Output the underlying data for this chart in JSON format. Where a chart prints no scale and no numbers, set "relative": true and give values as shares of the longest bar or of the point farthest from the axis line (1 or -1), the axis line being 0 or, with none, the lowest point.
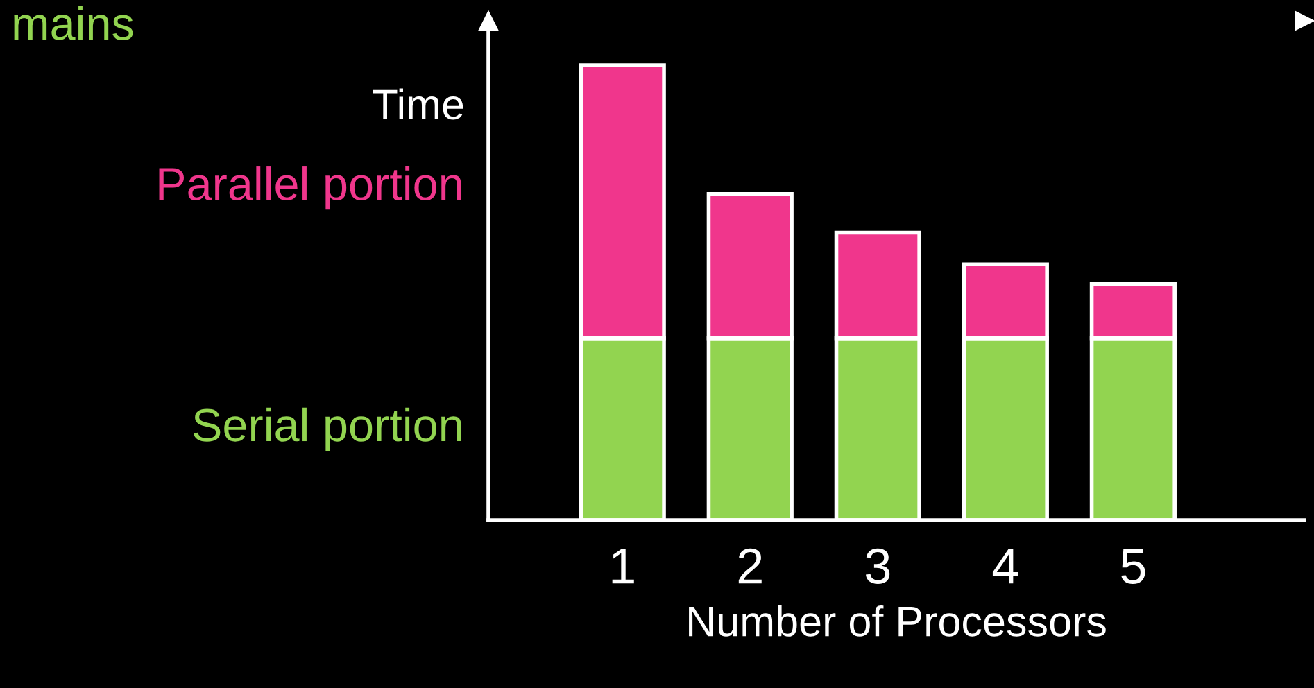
{
  "chart_data": {
    "type": "bar",
    "stacked": true,
    "relative": true,
    "ylabel": "Time",
    "xlabel": "Number of Processors",
    "categories": [
      "1",
      "2",
      "3",
      "4",
      "5"
    ],
    "series": [
      {
        "name": "Serial portion",
        "color": "#92d450",
        "values": [
          0.4,
          0.4,
          0.4,
          0.4,
          0.4
        ]
      },
      {
        "name": "Parallel portion",
        "color": "#f0368c",
        "values": [
          0.6,
          0.317,
          0.232,
          0.162,
          0.119
        ]
      }
    ],
    "annotations": [
      "mains"
    ]
  }
}
